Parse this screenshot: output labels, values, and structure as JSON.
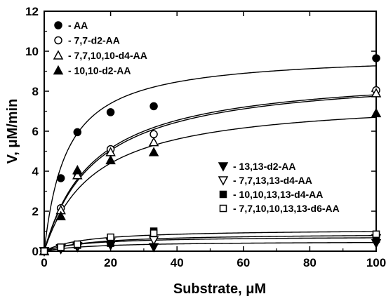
{
  "chart_data": {
    "type": "scatter",
    "title": "",
    "xlabel": "Substrate, μM",
    "ylabel": "V, μM/min",
    "xlim": [
      0,
      100
    ],
    "ylim": [
      0,
      12
    ],
    "x_ticks": [
      0,
      20,
      40,
      60,
      80,
      100
    ],
    "y_ticks": [
      0,
      2,
      4,
      6,
      8,
      10,
      12
    ],
    "grid": false,
    "legend_groups": [
      "upper-left",
      "center-right"
    ],
    "series": [
      {
        "name": "- AA",
        "marker": "circle-filled",
        "legend_group": 0,
        "points": [
          [
            0,
            0
          ],
          [
            5,
            3.65
          ],
          [
            10,
            5.95
          ],
          [
            20,
            6.95
          ],
          [
            33,
            7.25
          ],
          [
            100,
            9.65
          ]
        ],
        "fit": {
          "vmax": 9.9,
          "km": 6.8
        }
      },
      {
        "name": "- 7,7-d2-AA",
        "marker": "circle-open",
        "legend_group": 0,
        "points": [
          [
            0,
            0
          ],
          [
            5,
            2.15
          ],
          [
            10,
            3.9
          ],
          [
            20,
            5.1
          ],
          [
            33,
            5.85
          ],
          [
            100,
            8.05
          ]
        ],
        "fit": {
          "vmax": 9.0,
          "km": 15
        }
      },
      {
        "name": "- 7,7,10,10-d4-AA",
        "marker": "triangle-open",
        "legend_group": 0,
        "points": [
          [
            0,
            0
          ],
          [
            5,
            2.05
          ],
          [
            10,
            3.8
          ],
          [
            20,
            4.95
          ],
          [
            33,
            5.45
          ],
          [
            100,
            7.9
          ]
        ],
        "fit": {
          "vmax": 8.95,
          "km": 15.5
        }
      },
      {
        "name": "- 10,10-d2-AA",
        "marker": "triangle-filled",
        "legend_group": 0,
        "points": [
          [
            0,
            0
          ],
          [
            5,
            1.75
          ],
          [
            10,
            4.05
          ],
          [
            20,
            4.55
          ],
          [
            33,
            4.95
          ],
          [
            100,
            6.9
          ]
        ],
        "fit": {
          "vmax": 7.7,
          "km": 15
        }
      },
      {
        "name": "- 13,13-d2-AA",
        "marker": "triangle-down-filled",
        "legend_group": 1,
        "points": [
          [
            0,
            0
          ],
          [
            5,
            0.1
          ],
          [
            10,
            0.2
          ],
          [
            20,
            0.3
          ],
          [
            33,
            0.2
          ],
          [
            100,
            0.4
          ]
        ],
        "fit": {
          "vmax": 0.5,
          "km": 15
        }
      },
      {
        "name": "- 7,7,13,13-d4-AA",
        "marker": "triangle-down-open",
        "legend_group": 1,
        "points": [
          [
            0,
            0
          ],
          [
            5,
            0.15
          ],
          [
            10,
            0.25
          ],
          [
            20,
            0.45
          ],
          [
            33,
            0.55
          ],
          [
            100,
            0.65
          ]
        ],
        "fit": {
          "vmax": 0.75,
          "km": 12
        }
      },
      {
        "name": "- 10,10,13,13-d4-AA",
        "marker": "square-filled",
        "legend_group": 1,
        "points": [
          [
            0,
            0
          ],
          [
            5,
            0.2
          ],
          [
            10,
            0.3
          ],
          [
            20,
            0.4
          ],
          [
            33,
            1.0
          ],
          [
            100,
            0.6
          ]
        ],
        "fit": {
          "vmax": 0.9,
          "km": 15
        }
      },
      {
        "name": "- 7,7,10,10,13,13-d6-AA",
        "marker": "square-open",
        "legend_group": 1,
        "points": [
          [
            0,
            0
          ],
          [
            5,
            0.2
          ],
          [
            10,
            0.35
          ],
          [
            20,
            0.7
          ],
          [
            33,
            0.9
          ],
          [
            100,
            0.85
          ]
        ],
        "fit": {
          "vmax": 1.1,
          "km": 12
        }
      }
    ]
  }
}
